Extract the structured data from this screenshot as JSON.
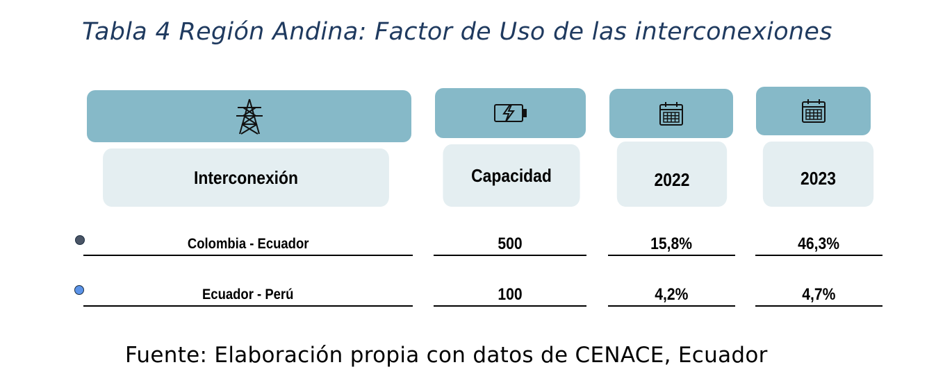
{
  "title": "Tabla 4 Región Andina: Factor de Uso de las interconexiones",
  "columns": [
    {
      "icon": "transmission-tower-icon",
      "header": "Interconexión"
    },
    {
      "icon": "battery-charging-icon",
      "header": "Capacidad"
    },
    {
      "icon": "calendar-icon",
      "header": "2022"
    },
    {
      "icon": "calendar-icon",
      "header": "2023"
    }
  ],
  "rows": [
    {
      "bullet_color": "#4a5566",
      "interconexion": "Colombia - Ecuador",
      "capacidad": "500",
      "y2022": "15,8%",
      "y2023": "46,3%"
    },
    {
      "bullet_color": "#5b93e8",
      "interconexion": "Ecuador - Perú",
      "capacidad": "100",
      "y2022": "4,2%",
      "y2023": "4,7%"
    }
  ],
  "source": "Fuente: Elaboración propia con datos de CENACE, Ecuador",
  "colors": {
    "icon_header_bg": "#86b9c8",
    "label_header_bg": "#e4eef1",
    "title": "#1f3a5f"
  }
}
